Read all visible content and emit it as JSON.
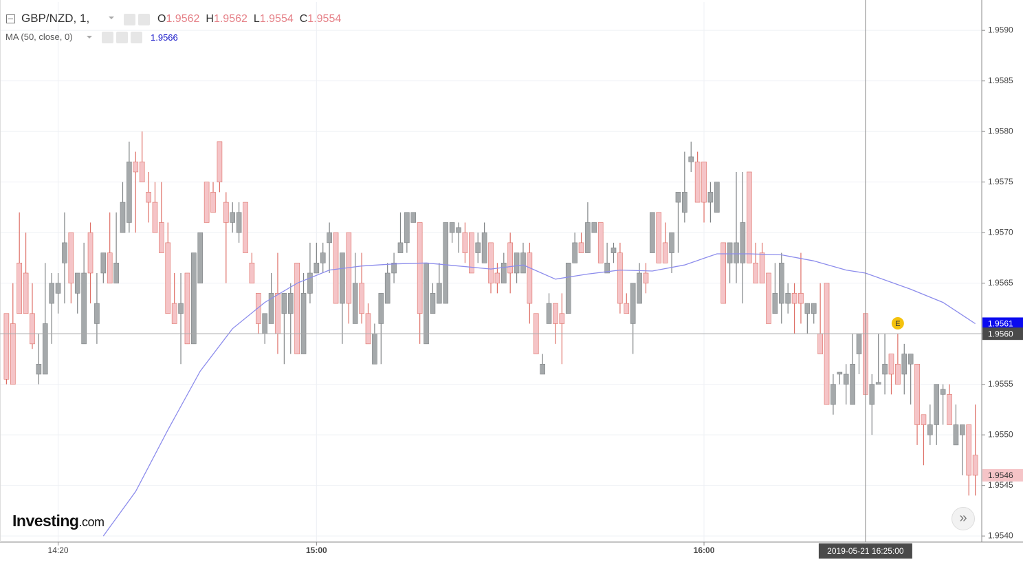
{
  "header": {
    "symbol": "GBP/NZD, 1,",
    "ohlc_labels": [
      "O",
      "H",
      "L",
      "C"
    ]
  },
  "watermark": [
    "Investing",
    ".com"
  ],
  "crosshair": {
    "x": "16:25",
    "x_label": "2019-05-21 16:25:00",
    "y": {
      "value": 1.956,
      "label": "1.9560"
    }
  },
  "events": [
    {
      "x": "16:30",
      "label": "E"
    }
  ],
  "chart_data": {
    "type": "candlestick",
    "x": [
      "14:12",
      "14:13",
      "14:14",
      "14:15",
      "14:16",
      "14:17",
      "14:18",
      "14:19",
      "14:20",
      "14:21",
      "14:22",
      "14:23",
      "14:24",
      "14:25",
      "14:26",
      "14:27",
      "14:28",
      "14:29",
      "14:30",
      "14:31",
      "14:32",
      "14:33",
      "14:34",
      "14:35",
      "14:36",
      "14:37",
      "14:38",
      "14:39",
      "14:40",
      "14:41",
      "14:42",
      "14:43",
      "14:44",
      "14:45",
      "14:46",
      "14:47",
      "14:48",
      "14:49",
      "14:50",
      "14:51",
      "14:52",
      "14:53",
      "14:54",
      "14:55",
      "14:56",
      "14:57",
      "14:58",
      "14:59",
      "15:00",
      "15:01",
      "15:02",
      "15:03",
      "15:04",
      "15:05",
      "15:06",
      "15:07",
      "15:08",
      "15:09",
      "15:10",
      "15:11",
      "15:12",
      "15:13",
      "15:14",
      "15:15",
      "15:16",
      "15:17",
      "15:18",
      "15:19",
      "15:20",
      "15:21",
      "15:22",
      "15:23",
      "15:24",
      "15:25",
      "15:26",
      "15:27",
      "15:28",
      "15:29",
      "15:30",
      "15:31",
      "15:32",
      "15:33",
      "15:34",
      "15:35",
      "15:36",
      "15:37",
      "15:38",
      "15:39",
      "15:40",
      "15:41",
      "15:42",
      "15:43",
      "15:44",
      "15:45",
      "15:46",
      "15:47",
      "15:48",
      "15:49",
      "15:50",
      "15:51",
      "15:52",
      "15:53",
      "15:54",
      "15:55",
      "15:56",
      "15:57",
      "15:58",
      "15:59",
      "16:00",
      "16:01",
      "16:02",
      "16:03",
      "16:04",
      "16:05",
      "16:06",
      "16:07",
      "16:08",
      "16:09",
      "16:10",
      "16:11",
      "16:12",
      "16:13",
      "16:14",
      "16:15",
      "16:16",
      "16:17",
      "16:18",
      "16:19",
      "16:20",
      "16:21",
      "16:22",
      "16:23",
      "16:24",
      "16:25",
      "16:26",
      "16:27",
      "16:28",
      "16:29",
      "16:30",
      "16:31",
      "16:32",
      "16:33",
      "16:34",
      "16:35",
      "16:36",
      "16:37",
      "16:38",
      "16:39",
      "16:40",
      "16:41",
      "16:42"
    ],
    "open": [
      1.9562,
      1.9561,
      1.9567,
      1.9566,
      1.9562,
      1.9556,
      1.9556,
      1.9563,
      1.9564,
      1.9567,
      1.957,
      1.9564,
      1.9559,
      1.957,
      1.9561,
      1.9566,
      1.9568,
      1.9565,
      1.957,
      1.9571,
      1.9577,
      1.9577,
      1.9574,
      1.9573,
      1.9571,
      1.9569,
      1.9563,
      1.9562,
      1.9566,
      1.9559,
      1.9565,
      1.9575,
      1.9574,
      1.9579,
      1.9573,
      1.9571,
      1.957,
      1.9573,
      1.9567,
      1.9564,
      1.956,
      1.9561,
      1.9564,
      1.9562,
      1.9562,
      1.9567,
      1.9558,
      1.9564,
      1.9566,
      1.9567,
      1.9569,
      1.957,
      1.9563,
      1.957,
      1.9561,
      1.9565,
      1.9562,
      1.9557,
      1.9561,
      1.9563,
      1.9566,
      1.9568,
      1.9569,
      1.9571,
      1.9571,
      1.9559,
      1.9562,
      1.9563,
      1.9563,
      1.957,
      1.957,
      1.957,
      1.957,
      1.9568,
      1.9567,
      1.9569,
      1.9566,
      1.9565,
      1.9569,
      1.9566,
      1.9566,
      1.9568,
      1.9562,
      1.9556,
      1.9561,
      1.9563,
      1.9562,
      1.9562,
      1.9567,
      1.9569,
      1.9568,
      1.957,
      1.9571,
      1.9566,
      1.9568,
      1.9568,
      1.9563,
      1.9561,
      1.9563,
      1.9566,
      1.9568,
      1.9572,
      1.9569,
      1.9568,
      1.9573,
      1.9572,
      1.9577,
      1.9577,
      1.9577,
      1.9573,
      1.9572,
      1.9569,
      1.9567,
      1.9567,
      1.9567,
      1.9576,
      1.9567,
      1.9568,
      1.9566,
      1.9562,
      1.9563,
      1.9563,
      1.9564,
      1.9564,
      1.9562,
      1.9562,
      1.956,
      1.9565,
      1.9553,
      1.9556,
      1.9555,
      1.9553,
      1.9558,
      1.9562,
      1.9553,
      1.9555,
      1.9556,
      1.9558,
      1.9557,
      1.9556,
      1.9557,
      1.9557,
      1.9552,
      1.955,
      1.9551,
      1.9554,
      1.9554,
      1.9549,
      1.955,
      1.9551,
      1.9548
    ],
    "high": [
      1.9562,
      1.9565,
      1.9572,
      1.957,
      1.9565,
      1.956,
      1.9567,
      1.9566,
      1.9566,
      1.9572,
      1.957,
      1.9566,
      1.9569,
      1.9571,
      1.9566,
      1.9568,
      1.9572,
      1.9572,
      1.9575,
      1.9579,
      1.9578,
      1.958,
      1.9576,
      1.9575,
      1.9575,
      1.9571,
      1.9566,
      1.9566,
      1.9566,
      1.9568,
      1.957,
      1.9575,
      1.9575,
      1.9579,
      1.9574,
      1.9573,
      1.9573,
      1.9573,
      1.9568,
      1.9564,
      1.9562,
      1.9566,
      1.9568,
      1.9564,
      1.9565,
      1.9567,
      1.9566,
      1.9569,
      1.9569,
      1.9569,
      1.9571,
      1.957,
      1.9568,
      1.957,
      1.9568,
      1.9568,
      1.9563,
      1.9561,
      1.9564,
      1.9567,
      1.9568,
      1.9572,
      1.9572,
      1.9572,
      1.9571,
      1.9567,
      1.9565,
      1.9567,
      1.9571,
      1.9571,
      1.9571,
      1.9571,
      1.957,
      1.957,
      1.9571,
      1.9569,
      1.9567,
      1.9568,
      1.957,
      1.9568,
      1.9569,
      1.9569,
      1.9562,
      1.9558,
      1.9564,
      1.9563,
      1.9564,
      1.9567,
      1.957,
      1.957,
      1.9573,
      1.9571,
      1.9571,
      1.9569,
      1.9569,
      1.9569,
      1.9564,
      1.9565,
      1.9567,
      1.9567,
      1.9572,
      1.9572,
      1.9571,
      1.957,
      1.9574,
      1.9578,
      1.9579,
      1.9578,
      1.9577,
      1.9575,
      1.9575,
      1.9569,
      1.9569,
      1.9576,
      1.9576,
      1.9576,
      1.9569,
      1.9569,
      1.9566,
      1.9567,
      1.9568,
      1.9565,
      1.9565,
      1.9568,
      1.9563,
      1.9563,
      1.9565,
      1.9565,
      1.9556,
      1.9556,
      1.9557,
      1.956,
      1.956,
      1.9562,
      1.9556,
      1.956,
      1.956,
      1.9558,
      1.956,
      1.9559,
      1.9558,
      1.9557,
      1.9552,
      1.9553,
      1.9555,
      1.9555,
      1.9555,
      1.9553,
      1.9551,
      1.9551,
      1.9553
    ],
    "low": [
      1.9555,
      1.9555,
      1.9562,
      1.9562,
      1.95585,
      1.9555,
      1.9556,
      1.9559,
      1.9562,
      1.9563,
      1.9563,
      1.9562,
      1.9559,
      1.9563,
      1.9559,
      1.9565,
      1.9565,
      1.9565,
      1.957,
      1.957,
      1.957,
      1.9575,
      1.9571,
      1.957,
      1.9568,
      1.9562,
      1.9561,
      1.9557,
      1.9559,
      1.9559,
      1.9565,
      1.9571,
      1.9572,
      1.9574,
      1.9565,
      1.957,
      1.9569,
      1.9568,
      1.9565,
      1.956,
      1.9559,
      1.9561,
      1.9558,
      1.9557,
      1.9558,
      1.9558,
      1.9558,
      1.9563,
      1.9566,
      1.9566,
      1.9566,
      1.9563,
      1.9559,
      1.9561,
      1.9561,
      1.9561,
      1.9559,
      1.9557,
      1.9557,
      1.9563,
      1.9565,
      1.9568,
      1.9568,
      1.9571,
      1.9559,
      1.9559,
      1.9562,
      1.9563,
      1.9563,
      1.9569,
      1.9568,
      1.9567,
      1.9566,
      1.9567,
      1.9567,
      1.9564,
      1.9564,
      1.9565,
      1.9564,
      1.9565,
      1.9566,
      1.9561,
      1.9558,
      1.9556,
      1.9561,
      1.9559,
      1.9557,
      1.9562,
      1.9567,
      1.9568,
      1.9568,
      1.957,
      1.9567,
      1.9566,
      1.9567,
      1.9562,
      1.9562,
      1.9558,
      1.9563,
      1.9564,
      1.9568,
      1.9567,
      1.9567,
      1.9566,
      1.9568,
      1.9571,
      1.9576,
      1.9573,
      1.9571,
      1.9571,
      1.9572,
      1.9563,
      1.9565,
      1.9565,
      1.9563,
      1.9567,
      1.9565,
      1.9565,
      1.9561,
      1.9562,
      1.9561,
      1.9562,
      1.956,
      1.9561,
      1.956,
      1.9561,
      1.9558,
      1.9553,
      1.9552,
      1.9555,
      1.9553,
      1.9553,
      1.9556,
      1.9554,
      1.955,
      1.9555,
      1.9554,
      1.9554,
      1.9555,
      1.9554,
      1.9553,
      1.9549,
      1.9547,
      1.9549,
      1.9549,
      1.9551,
      1.9551,
      1.9549,
      1.9546,
      1.9544,
      1.9544
    ],
    "close": [
      1.95555,
      1.9555,
      1.9562,
      1.9562,
      1.9559,
      1.9557,
      1.9561,
      1.9565,
      1.9565,
      1.9569,
      1.9565,
      1.9566,
      1.9566,
      1.9566,
      1.9563,
      1.9568,
      1.9565,
      1.9567,
      1.9573,
      1.9577,
      1.9576,
      1.9575,
      1.9573,
      1.957,
      1.9568,
      1.9562,
      1.9561,
      1.9563,
      1.9559,
      1.9568,
      1.957,
      1.9571,
      1.9572,
      1.9575,
      1.9571,
      1.9572,
      1.9572,
      1.9568,
      1.9565,
      1.9561,
      1.9562,
      1.9564,
      1.956,
      1.9564,
      1.9564,
      1.9558,
      1.9564,
      1.9566,
      1.9567,
      1.9568,
      1.957,
      1.9563,
      1.9568,
      1.9563,
      1.9565,
      1.9562,
      1.9559,
      1.956,
      1.9564,
      1.9566,
      1.9567,
      1.9569,
      1.9572,
      1.9572,
      1.9562,
      1.9567,
      1.9564,
      1.9565,
      1.9571,
      1.9571,
      1.95705,
      1.9568,
      1.9566,
      1.9569,
      1.957,
      1.9565,
      1.9565,
      1.9567,
      1.9566,
      1.9568,
      1.9568,
      1.9563,
      1.9558,
      1.9557,
      1.9563,
      1.9561,
      1.9561,
      1.9567,
      1.9569,
      1.9568,
      1.9571,
      1.9571,
      1.9567,
      1.9567,
      1.95685,
      1.9563,
      1.9562,
      1.9565,
      1.9566,
      1.9565,
      1.9572,
      1.9567,
      1.9567,
      1.957,
      1.9574,
      1.9574,
      1.95775,
      1.9573,
      1.9573,
      1.9574,
      1.9575,
      1.9563,
      1.9569,
      1.9569,
      1.9571,
      1.9567,
      1.9565,
      1.9565,
      1.9561,
      1.9564,
      1.9567,
      1.9564,
      1.9563,
      1.9563,
      1.9563,
      1.9563,
      1.9558,
      1.9553,
      1.9555,
      1.95562,
      1.9556,
      1.9557,
      1.956,
      1.9554,
      1.9555,
      1.95552,
      1.9557,
      1.9556,
      1.9555,
      1.9558,
      1.9558,
      1.9551,
      1.9551,
      1.9551,
      1.9555,
      1.95545,
      1.9551,
      1.9551,
      1.9551,
      1.9546,
      1.9546
    ],
    "up_color": "#a5a9ab",
    "up_wick": "#7f8385",
    "down_color": "#f5c4c7",
    "down_wick": "#de6f66",
    "ma": {
      "name": "MA (50, close, 0)",
      "color": "#8c8cec",
      "x": [
        "14:27",
        "14:32",
        "14:37",
        "14:42",
        "14:47",
        "14:52",
        "14:57",
        "15:02",
        "15:07",
        "15:12",
        "15:17",
        "15:22",
        "15:27",
        "15:32",
        "15:37",
        "15:42",
        "15:47",
        "15:52",
        "15:57",
        "16:02",
        "16:07",
        "16:12",
        "16:17",
        "16:22",
        "16:25",
        "16:32",
        "16:37",
        "16:42"
      ],
      "values": [
        1.954,
        1.95444,
        1.95505,
        1.95563,
        1.95605,
        1.95631,
        1.9565,
        1.95663,
        1.95667,
        1.95669,
        1.9567,
        1.95667,
        1.95664,
        1.95668,
        1.95654,
        1.95659,
        1.95663,
        1.95662,
        1.95668,
        1.95679,
        1.95679,
        1.95678,
        1.95672,
        1.95663,
        1.9566,
        1.95644,
        1.95631,
        1.9561
      ]
    },
    "xlim": [
      "14:11",
      "16:43"
    ],
    "xticks": [
      "14:20",
      "15:00",
      "16:00"
    ],
    "ylim": [
      1.95394,
      1.95928
    ],
    "yticks": [
      {
        "value": 1.954,
        "label": "1.9540"
      },
      {
        "value": 1.9545,
        "label": "1.9545"
      },
      {
        "value": 1.955,
        "label": "1.9550"
      },
      {
        "value": 1.9555,
        "label": "1.9555"
      },
      {
        "value": 1.956,
        "label": "1.9560"
      },
      {
        "value": 1.9565,
        "label": "1.9565"
      },
      {
        "value": 1.957,
        "label": "1.9570"
      },
      {
        "value": 1.9575,
        "label": "1.9575"
      },
      {
        "value": 1.958,
        "label": "1.9580"
      },
      {
        "value": 1.9585,
        "label": "1.9585"
      },
      {
        "value": 1.959,
        "label": "1.9590"
      }
    ],
    "grid": true
  }
}
